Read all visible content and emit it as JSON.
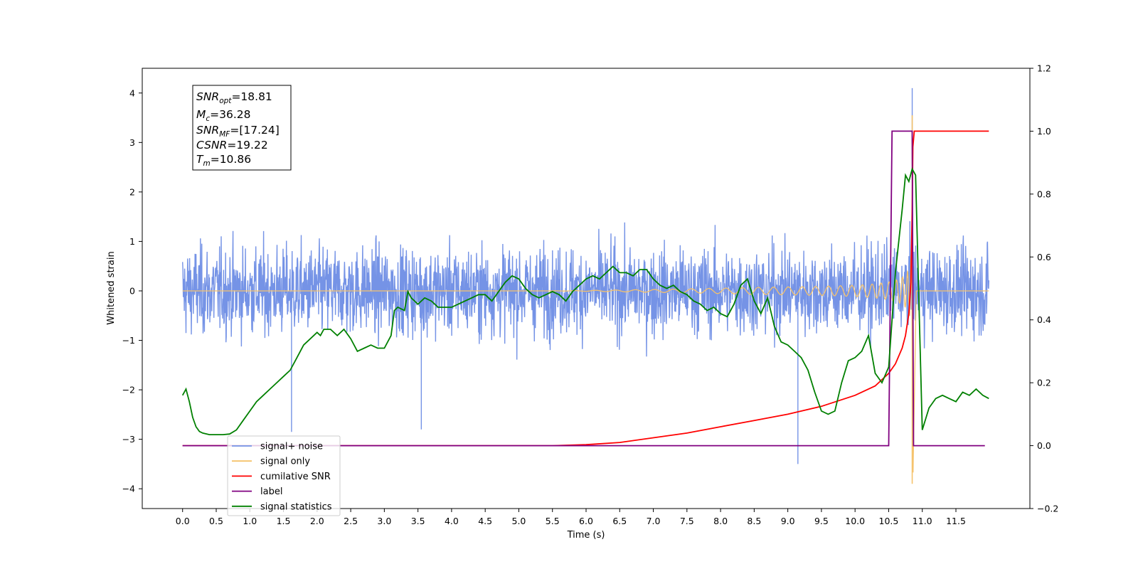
{
  "chart_data": {
    "type": "line",
    "xlabel": "Time (s)",
    "ylabel": "Whitened strain",
    "xlim": [
      -0.6,
      12.6
    ],
    "ylim": [
      -4.4,
      4.5
    ],
    "y2lim": [
      -0.2,
      1.2
    ],
    "xticks": [
      "0.0",
      "0.5",
      "1.0",
      "1.5",
      "2.0",
      "2.5",
      "3.0",
      "3.5",
      "4.0",
      "4.5",
      "5.0",
      "5.5",
      "6.0",
      "6.5",
      "7.0",
      "7.5",
      "8.0",
      "8.5",
      "9.0",
      "9.5",
      "10.0",
      "10.5",
      "11.0",
      "11.5"
    ],
    "yticks": [
      "4",
      "3",
      "2",
      "1",
      "0",
      "−1",
      "−2",
      "−3",
      "−4"
    ],
    "y2ticks": [
      "1.2",
      "1.0",
      "0.8",
      "0.6",
      "0.4",
      "0.2",
      "0.0",
      "−0.2"
    ],
    "grid": false,
    "legend_position": "lower-left",
    "annotation": {
      "snr_opt_value": "=18.81",
      "mc_value": "=36.28",
      "snr_mf_value": "=[17.24]",
      "csnr_value": "=19.22",
      "tm_value": "=10.86"
    },
    "series": [
      {
        "name": "signal+ noise",
        "color": "#7593e6",
        "axis": "left",
        "note": "whitened noise amplitude envelope",
        "x": [
          0.0,
          11.99
        ],
        "envelope_max": [
          4.1,
          2.9
        ],
        "spikes": [
          [
            9.15,
            -3.5
          ],
          [
            10.85,
            4.1
          ],
          [
            1.62,
            -2.85
          ],
          [
            3.55,
            -2.8
          ]
        ]
      },
      {
        "name": "signal only",
        "color": "#f5c26b",
        "axis": "left",
        "chirp_start": 6.5,
        "merger_time": 10.86,
        "peak": 3.55,
        "trough": -3.9
      },
      {
        "name": "cumilative SNR",
        "color": "#ff0000",
        "axis": "right",
        "x": [
          0.0,
          1.0,
          2.0,
          3.0,
          4.0,
          5.0,
          5.5,
          6.0,
          6.5,
          7.0,
          7.5,
          8.0,
          8.5,
          9.0,
          9.5,
          10.0,
          10.3,
          10.5,
          10.6,
          10.7,
          10.75,
          10.8,
          10.83,
          10.85,
          10.86,
          10.88,
          11.0,
          11.5,
          11.99
        ],
        "values": [
          0.0,
          0.0,
          0.0,
          0.0,
          0.0,
          0.0,
          0.0,
          0.003,
          0.01,
          0.025,
          0.04,
          0.06,
          0.08,
          0.1,
          0.125,
          0.16,
          0.19,
          0.23,
          0.26,
          0.31,
          0.35,
          0.42,
          0.52,
          0.75,
          0.95,
          1.0,
          1.0,
          1.0,
          1.0
        ]
      },
      {
        "name": "label",
        "color": "#800080",
        "axis": "right",
        "x": [
          0.0,
          10.5,
          10.55,
          10.85,
          10.87,
          11.93
        ],
        "values": [
          0.0,
          0.0,
          1.0,
          1.0,
          0.0,
          0.0
        ]
      },
      {
        "name": "signal statistics",
        "color": "#008000",
        "axis": "right",
        "x": [
          0.0,
          0.05,
          0.1,
          0.15,
          0.2,
          0.25,
          0.3,
          0.4,
          0.5,
          0.6,
          0.7,
          0.8,
          0.9,
          1.0,
          1.1,
          1.2,
          1.3,
          1.4,
          1.5,
          1.6,
          1.7,
          1.8,
          1.9,
          2.0,
          2.05,
          2.1,
          2.2,
          2.3,
          2.4,
          2.5,
          2.6,
          2.7,
          2.8,
          2.9,
          3.0,
          3.1,
          3.15,
          3.2,
          3.3,
          3.35,
          3.4,
          3.5,
          3.6,
          3.7,
          3.8,
          3.9,
          4.0,
          4.1,
          4.2,
          4.3,
          4.4,
          4.5,
          4.6,
          4.7,
          4.8,
          4.9,
          5.0,
          5.1,
          5.2,
          5.3,
          5.4,
          5.5,
          5.6,
          5.7,
          5.8,
          5.9,
          6.0,
          6.1,
          6.2,
          6.3,
          6.4,
          6.5,
          6.6,
          6.7,
          6.8,
          6.9,
          7.0,
          7.1,
          7.2,
          7.3,
          7.4,
          7.5,
          7.6,
          7.7,
          7.8,
          7.9,
          8.0,
          8.1,
          8.2,
          8.3,
          8.4,
          8.5,
          8.6,
          8.7,
          8.8,
          8.9,
          9.0,
          9.1,
          9.2,
          9.3,
          9.4,
          9.5,
          9.6,
          9.7,
          9.8,
          9.9,
          10.0,
          10.1,
          10.2,
          10.3,
          10.4,
          10.5,
          10.6,
          10.7,
          10.75,
          10.8,
          10.85,
          10.9,
          11.0,
          11.1,
          11.2,
          11.3,
          11.4,
          11.5,
          11.6,
          11.7,
          11.8,
          11.9,
          11.99
        ],
        "values": [
          0.16,
          0.18,
          0.14,
          0.09,
          0.06,
          0.045,
          0.04,
          0.035,
          0.035,
          0.035,
          0.037,
          0.05,
          0.08,
          0.11,
          0.14,
          0.16,
          0.18,
          0.2,
          0.22,
          0.24,
          0.28,
          0.32,
          0.34,
          0.36,
          0.35,
          0.37,
          0.37,
          0.35,
          0.37,
          0.34,
          0.3,
          0.31,
          0.32,
          0.31,
          0.31,
          0.35,
          0.43,
          0.44,
          0.43,
          0.49,
          0.47,
          0.45,
          0.47,
          0.46,
          0.44,
          0.44,
          0.44,
          0.45,
          0.46,
          0.47,
          0.48,
          0.48,
          0.46,
          0.49,
          0.52,
          0.54,
          0.53,
          0.5,
          0.48,
          0.47,
          0.48,
          0.49,
          0.48,
          0.46,
          0.49,
          0.51,
          0.53,
          0.54,
          0.53,
          0.55,
          0.57,
          0.55,
          0.55,
          0.54,
          0.56,
          0.56,
          0.53,
          0.51,
          0.5,
          0.51,
          0.49,
          0.48,
          0.46,
          0.45,
          0.43,
          0.44,
          0.42,
          0.41,
          0.45,
          0.51,
          0.53,
          0.46,
          0.42,
          0.47,
          0.38,
          0.33,
          0.32,
          0.3,
          0.28,
          0.24,
          0.17,
          0.11,
          0.1,
          0.11,
          0.2,
          0.27,
          0.28,
          0.3,
          0.35,
          0.23,
          0.2,
          0.25,
          0.55,
          0.75,
          0.86,
          0.84,
          0.88,
          0.86,
          0.05,
          0.12,
          0.15,
          0.16,
          0.15,
          0.14,
          0.17,
          0.16,
          0.18,
          0.16,
          0.15
        ]
      }
    ]
  }
}
